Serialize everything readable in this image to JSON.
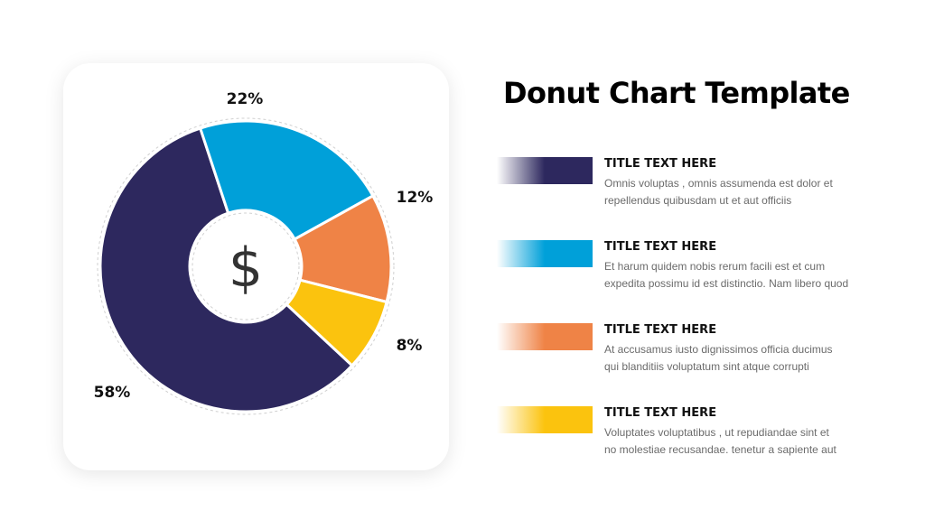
{
  "slide": {
    "title": "Donut Chart Template",
    "center_icon": "dollar-icon",
    "center_symbol": "$"
  },
  "chart_data": {
    "type": "pie",
    "variant": "donut",
    "series": [
      {
        "value": 58,
        "label": "58%",
        "color": "#2d285e"
      },
      {
        "value": 22,
        "label": "22%",
        "color": "#00a0d9"
      },
      {
        "value": 12,
        "label": "12%",
        "color": "#ef8346"
      },
      {
        "value": 8,
        "label": "8%",
        "color": "#fbc30e"
      }
    ]
  },
  "legend": [
    {
      "title": "TITLE TEXT HERE",
      "line1": "Omnis voluptas , omnis assumenda est dolor et",
      "line2": "repellendus quibusdam ut et aut officiis",
      "color": "#2d285e"
    },
    {
      "title": "TITLE TEXT HERE",
      "line1": "Et harum quidem nobis rerum facili est et cum",
      "line2": "expedita possimu id est distinctio. Nam libero quod",
      "color": "#00a0d9"
    },
    {
      "title": "TITLE TEXT HERE",
      "line1": "At accusamus iusto dignissimos officia ducimus",
      "line2": "qui blanditiis voluptatum sint atque corrupti",
      "color": "#ef8346"
    },
    {
      "title": "TITLE TEXT HERE",
      "line1": "Voluptates voluptatibus , ut repudiandae sint et",
      "line2": "no molestiae recusandae. tenetur a sapiente aut",
      "color": "#fbc30e"
    }
  ]
}
